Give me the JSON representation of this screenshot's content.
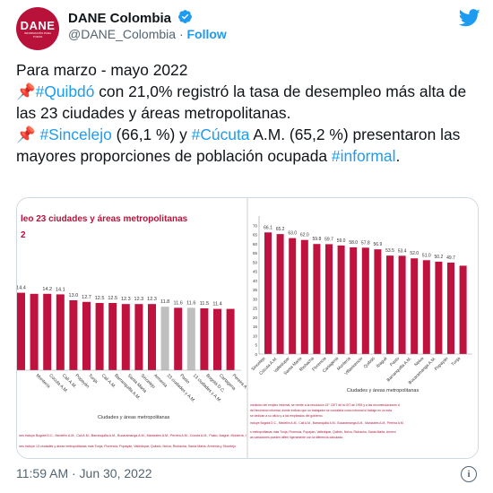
{
  "account": {
    "avatar_text": "DANE",
    "avatar_subtext": "INFORMACIÓN PARA TODOS",
    "name": "DANE Colombia",
    "handle": "@DANE_Colombia",
    "separator": "·",
    "follow_label": "Follow"
  },
  "tweet": {
    "line1": "Para marzo - mayo 2022",
    "pin1": "📌",
    "hashtag_quibdo": "#Quibdó",
    "text1": " con 21,0% registró la tasa de desempleo más alta de las 23 ciudades y áreas metropolitanas.",
    "pin2": "📌",
    "hashtag_sincelejo": "#Sincelejo",
    "text2": " (66,1 %) y ",
    "hashtag_cucuta": "#Cúcuta",
    "text3": " A.M. (65,2 %) presentaron las mayores proporciones de población ocupada ",
    "hashtag_informal": "#informal",
    "text4": "."
  },
  "timestamp": "11:59 AM · Jun 30, 2022",
  "colors": {
    "bar": "#c0123f",
    "bar_gray": "#bfbfbf",
    "link": "#1d9bf0",
    "brand": "#b8123b"
  },
  "chart_data": [
    {
      "type": "bar",
      "title": "leo 23 ciudades y áreas metropolitanas",
      "subtitle": "2",
      "xlabel": "Ciudades y áreas metropolitanas",
      "categories": [
        "",
        "Montería",
        "Cúcuta A.M.",
        "Cali A.M.",
        "Popayán",
        "Tunja",
        "Cali A.M.",
        "Barranquilla A.M.",
        "Santa Marta",
        "Sincelejo",
        "Armenia",
        "23 ciudades y A.M.",
        "Pasto",
        "13 ciudades y A.M.",
        "Bogotá D.C.",
        "Cartagena",
        "Pereira A.M."
      ],
      "values": [
        14.4,
        14.2,
        14.2,
        14.1,
        13.0,
        12.7,
        12.5,
        12.5,
        12.3,
        12.3,
        12.3,
        11.8,
        11.6,
        11.6,
        11.5,
        11.4,
        11.4
      ],
      "value_labels": [
        "14.4",
        "",
        "14.2",
        "14.1",
        "13.0",
        "12.7",
        "12.5",
        "12.5",
        "12.3",
        "12.3",
        "12.3",
        "11.8",
        "11.6",
        "11.6",
        "11.5",
        "11.4",
        ""
      ],
      "highlight_gray": [
        11,
        13
      ],
      "ylim": [
        0,
        22
      ],
      "footnote1": "nes incluye Bogotá D.C., Medellín A.M., Cali A.M., Barranquilla A.M., Bucaramanga A.M., Manizales A.M., Pereira A.M., Cúcuta A.M., Pasto, Ibagué, Montería, Cartagena y Villavicencio",
      "footnote2": "nes incluye 13 ciudades y áreas metropolitanas más Tunja, Florencia, Popayán, Valledupar, Quibdó, Neiva, Riohacha, Santa Marta, Armenia y Sincelejo"
    },
    {
      "type": "bar",
      "xlabel": "Ciudades y áreas metropolitanas",
      "categories": [
        "Sincelejo",
        "Cúcuta A.M.",
        "Valledupar",
        "Santa Marta",
        "Riohacha",
        "Florencia",
        "Cartagena",
        "Montería",
        "Villavicencio",
        "Quibdó",
        "Ibagué",
        "Pasto",
        "Barranquilla A.M.",
        "Neiva",
        "Bucaramanga A.M.",
        "Popayán",
        "Tunja"
      ],
      "values": [
        66.1,
        65.2,
        63.0,
        62.0,
        59.8,
        59.7,
        59.0,
        58.0,
        57.8,
        56.9,
        53.5,
        53.4,
        52.0,
        51.0,
        50.2,
        49.7,
        48.0
      ],
      "value_labels": [
        "66.1",
        "65.2",
        "63.0",
        "62.0",
        "59.8",
        "59.7",
        "59.0",
        "58.0",
        "57.8",
        "56.9",
        "53.5",
        "53.4",
        "52.0",
        "51.0",
        "50.2",
        "49.7",
        ""
      ],
      "ylim": [
        0,
        75
      ],
      "yticks": [
        "70",
        "65",
        "60",
        "55",
        "50",
        "45",
        "40",
        "35",
        "30",
        "25",
        "20",
        "15",
        "10",
        "5",
        "0"
      ],
      "footnote1": "medición del empleo informal, se remite a la resolución 15° CIET de la OIT de 1993 y a las recomendaciones d",
      "footnote2": "del fenómeno informal, donde indican que un trabajador se considera como informal si trabaja en un esta",
      "footnote3": "se dedican a su oficio y a los empleados del gobierno.",
      "footnote4": "incluye Bogotá D.C., Medellín A.M., Cali A.M., Barranquilla A.M., Bucaramanga A.M., Manizales A.M., Pereira A.M.",
      "footnote5": "s metropolitanas más Tunja, Florencia, Popayán, Valledupar, Quibdó, Neiva, Riohacha, Santa Marta, Armeni",
      "footnote6": "as variaciones pueden diferir ligeramente con la diferencia calculada."
    }
  ]
}
